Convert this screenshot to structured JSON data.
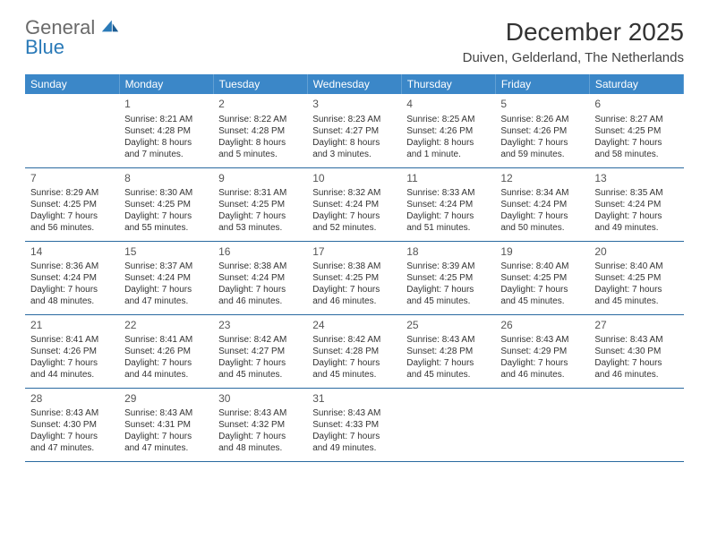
{
  "brand": {
    "line1": "General",
    "line2": "Blue"
  },
  "title": "December 2025",
  "location": "Duiven, Gelderland, The Netherlands",
  "colors": {
    "header_bg": "#3b87c8",
    "header_fg": "#ffffff",
    "rule": "#2a6aa0",
    "text": "#333333"
  },
  "days": [
    "Sunday",
    "Monday",
    "Tuesday",
    "Wednesday",
    "Thursday",
    "Friday",
    "Saturday"
  ],
  "weeks": [
    [
      null,
      {
        "n": "1",
        "sr": "8:21 AM",
        "ss": "4:28 PM",
        "dl": "8 hours and 7 minutes."
      },
      {
        "n": "2",
        "sr": "8:22 AM",
        "ss": "4:28 PM",
        "dl": "8 hours and 5 minutes."
      },
      {
        "n": "3",
        "sr": "8:23 AM",
        "ss": "4:27 PM",
        "dl": "8 hours and 3 minutes."
      },
      {
        "n": "4",
        "sr": "8:25 AM",
        "ss": "4:26 PM",
        "dl": "8 hours and 1 minute."
      },
      {
        "n": "5",
        "sr": "8:26 AM",
        "ss": "4:26 PM",
        "dl": "7 hours and 59 minutes."
      },
      {
        "n": "6",
        "sr": "8:27 AM",
        "ss": "4:25 PM",
        "dl": "7 hours and 58 minutes."
      }
    ],
    [
      {
        "n": "7",
        "sr": "8:29 AM",
        "ss": "4:25 PM",
        "dl": "7 hours and 56 minutes."
      },
      {
        "n": "8",
        "sr": "8:30 AM",
        "ss": "4:25 PM",
        "dl": "7 hours and 55 minutes."
      },
      {
        "n": "9",
        "sr": "8:31 AM",
        "ss": "4:25 PM",
        "dl": "7 hours and 53 minutes."
      },
      {
        "n": "10",
        "sr": "8:32 AM",
        "ss": "4:24 PM",
        "dl": "7 hours and 52 minutes."
      },
      {
        "n": "11",
        "sr": "8:33 AM",
        "ss": "4:24 PM",
        "dl": "7 hours and 51 minutes."
      },
      {
        "n": "12",
        "sr": "8:34 AM",
        "ss": "4:24 PM",
        "dl": "7 hours and 50 minutes."
      },
      {
        "n": "13",
        "sr": "8:35 AM",
        "ss": "4:24 PM",
        "dl": "7 hours and 49 minutes."
      }
    ],
    [
      {
        "n": "14",
        "sr": "8:36 AM",
        "ss": "4:24 PM",
        "dl": "7 hours and 48 minutes."
      },
      {
        "n": "15",
        "sr": "8:37 AM",
        "ss": "4:24 PM",
        "dl": "7 hours and 47 minutes."
      },
      {
        "n": "16",
        "sr": "8:38 AM",
        "ss": "4:24 PM",
        "dl": "7 hours and 46 minutes."
      },
      {
        "n": "17",
        "sr": "8:38 AM",
        "ss": "4:25 PM",
        "dl": "7 hours and 46 minutes."
      },
      {
        "n": "18",
        "sr": "8:39 AM",
        "ss": "4:25 PM",
        "dl": "7 hours and 45 minutes."
      },
      {
        "n": "19",
        "sr": "8:40 AM",
        "ss": "4:25 PM",
        "dl": "7 hours and 45 minutes."
      },
      {
        "n": "20",
        "sr": "8:40 AM",
        "ss": "4:25 PM",
        "dl": "7 hours and 45 minutes."
      }
    ],
    [
      {
        "n": "21",
        "sr": "8:41 AM",
        "ss": "4:26 PM",
        "dl": "7 hours and 44 minutes."
      },
      {
        "n": "22",
        "sr": "8:41 AM",
        "ss": "4:26 PM",
        "dl": "7 hours and 44 minutes."
      },
      {
        "n": "23",
        "sr": "8:42 AM",
        "ss": "4:27 PM",
        "dl": "7 hours and 45 minutes."
      },
      {
        "n": "24",
        "sr": "8:42 AM",
        "ss": "4:28 PM",
        "dl": "7 hours and 45 minutes."
      },
      {
        "n": "25",
        "sr": "8:43 AM",
        "ss": "4:28 PM",
        "dl": "7 hours and 45 minutes."
      },
      {
        "n": "26",
        "sr": "8:43 AM",
        "ss": "4:29 PM",
        "dl": "7 hours and 46 minutes."
      },
      {
        "n": "27",
        "sr": "8:43 AM",
        "ss": "4:30 PM",
        "dl": "7 hours and 46 minutes."
      }
    ],
    [
      {
        "n": "28",
        "sr": "8:43 AM",
        "ss": "4:30 PM",
        "dl": "7 hours and 47 minutes."
      },
      {
        "n": "29",
        "sr": "8:43 AM",
        "ss": "4:31 PM",
        "dl": "7 hours and 47 minutes."
      },
      {
        "n": "30",
        "sr": "8:43 AM",
        "ss": "4:32 PM",
        "dl": "7 hours and 48 minutes."
      },
      {
        "n": "31",
        "sr": "8:43 AM",
        "ss": "4:33 PM",
        "dl": "7 hours and 49 minutes."
      },
      null,
      null,
      null
    ]
  ],
  "labels": {
    "sunrise": "Sunrise:",
    "sunset": "Sunset:",
    "daylight": "Daylight:"
  }
}
